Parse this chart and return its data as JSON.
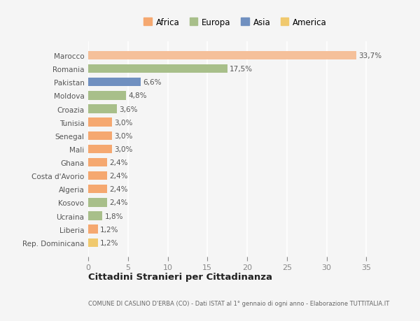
{
  "categories": [
    "Rep. Dominicana",
    "Liberia",
    "Ucraina",
    "Kosovo",
    "Algeria",
    "Costa d'Avorio",
    "Ghana",
    "Mali",
    "Senegal",
    "Tunisia",
    "Croazia",
    "Moldova",
    "Pakistan",
    "Romania",
    "Marocco"
  ],
  "values": [
    1.2,
    1.2,
    1.8,
    2.4,
    2.4,
    2.4,
    2.4,
    3.0,
    3.0,
    3.0,
    3.6,
    4.8,
    6.6,
    17.5,
    33.7
  ],
  "labels": [
    "1,2%",
    "1,2%",
    "1,8%",
    "2,4%",
    "2,4%",
    "2,4%",
    "2,4%",
    "3,0%",
    "3,0%",
    "3,0%",
    "3,6%",
    "4,8%",
    "6,6%",
    "17,5%",
    "33,7%"
  ],
  "colors": [
    "#f0c96e",
    "#f5a870",
    "#a8bf8a",
    "#a8bf8a",
    "#f5a870",
    "#f5a870",
    "#f5a870",
    "#f5a870",
    "#f5a870",
    "#f5a870",
    "#a8bf8a",
    "#a8bf8a",
    "#7090c0",
    "#a8bf8a",
    "#f5c09a"
  ],
  "continent_colors": {
    "Africa": "#f5a870",
    "Europa": "#a8bf8a",
    "Asia": "#7090c0",
    "America": "#f0c96e"
  },
  "xlim": [
    0,
    37
  ],
  "xticks": [
    0,
    5,
    10,
    15,
    20,
    25,
    30,
    35
  ],
  "title": "Cittadini Stranieri per Cittadinanza",
  "subtitle": "COMUNE DI CASLINO D'ERBA (CO) - Dati ISTAT al 1° gennaio di ogni anno - Elaborazione TUTTITALIA.IT",
  "bg_color": "#f5f5f5",
  "bar_height": 0.65
}
